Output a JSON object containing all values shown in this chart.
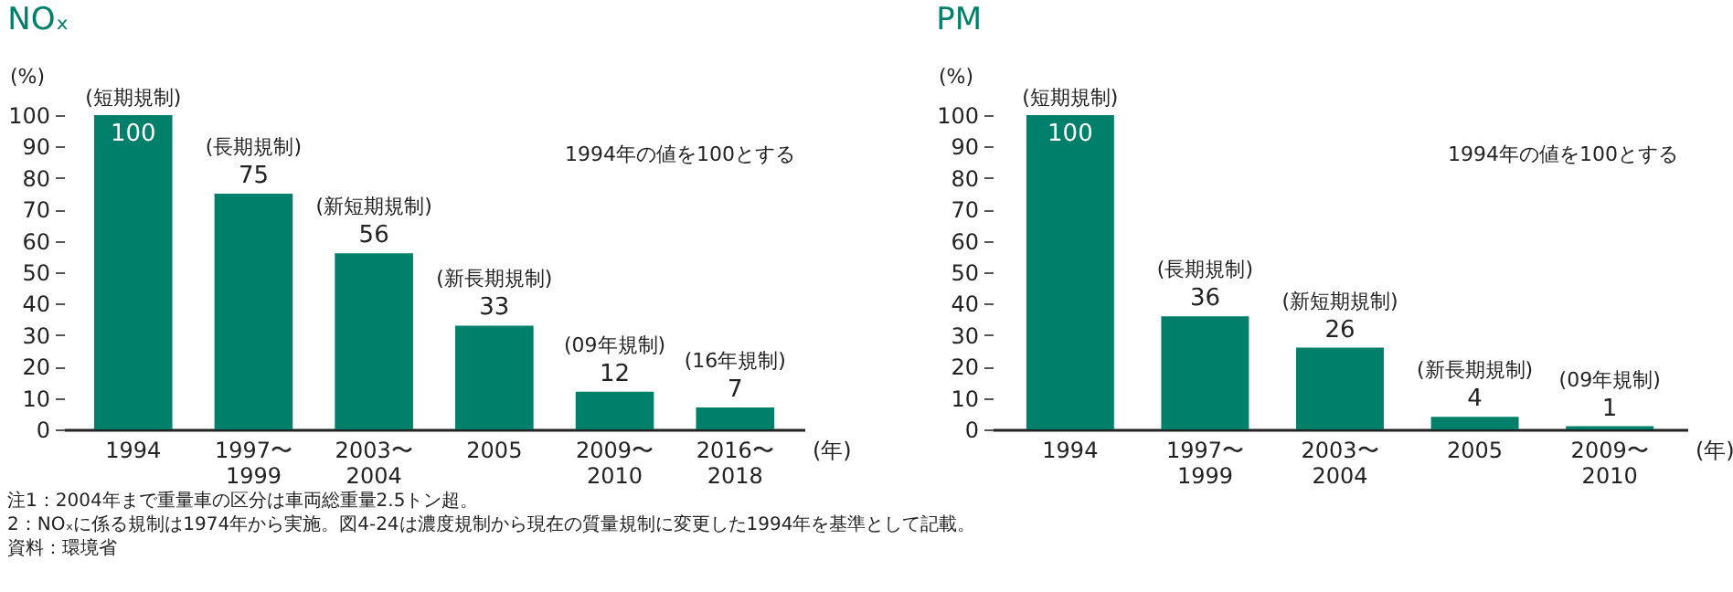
{
  "chart_data": [
    {
      "type": "bar",
      "title": "NOₓ",
      "ylabel": "(%)",
      "xlabel": "(年)",
      "categories": [
        "1994",
        "1997〜\n1999",
        "2003〜\n2004",
        "2005",
        "2009〜\n2010",
        "2016〜\n2018"
      ],
      "values": [
        100,
        75,
        56,
        33,
        12,
        7
      ],
      "color": "#00806a",
      "ylim": [
        0,
        100
      ],
      "yticks": [
        0,
        10,
        20,
        30,
        40,
        50,
        60,
        70,
        80,
        90,
        100
      ],
      "grid": false,
      "data_labels": true,
      "annotations": [
        "1994年の値を100とする",
        {
          "text": "(短期規制)",
          "x": "1994",
          "y": 100
        },
        {
          "text": "(長期規制)",
          "x": "1997〜\n1999",
          "y": 75
        },
        {
          "text": "(新短期規制)",
          "x": "2003〜\n2004",
          "y": 56
        },
        {
          "text": "(新長期規制)",
          "x": "2005",
          "y": 33
        },
        {
          "text": "(09年規制)",
          "x": "2009〜\n2010",
          "y": 12
        },
        {
          "text": "(16年規制)",
          "x": "2016〜\n2018",
          "y": 7
        },
        "注1：2004年まで重量車の区分は車両総重量2.5トン超。",
        "2：NOₓに係る規制は1974年から実施。図4-24は濃度規制から現在の質量規制に変更した1994年を基準として記載。",
        "資料：環境省"
      ]
    },
    {
      "type": "bar",
      "title": "PM",
      "ylabel": "(%)",
      "xlabel": "(年)",
      "categories": [
        "1994",
        "1997〜\n1999",
        "2003〜\n2004",
        "2005",
        "2009〜\n2010"
      ],
      "values": [
        100,
        36,
        26,
        4,
        1
      ],
      "color": "#00806a",
      "ylim": [
        0,
        100
      ],
      "yticks": [
        0,
        10,
        20,
        30,
        40,
        50,
        60,
        70,
        80,
        90,
        100
      ],
      "grid": false,
      "data_labels": true,
      "annotations": [
        "1994年の値を100とする",
        {
          "text": "(短期規制)",
          "x": "1994",
          "y": 100
        },
        {
          "text": "(長期規制)",
          "x": "1997〜\n1999",
          "y": 36
        },
        {
          "text": "(新短期規制)",
          "x": "2003〜\n2004",
          "y": 26
        },
        {
          "text": "(新長期規制)",
          "x": "2005",
          "y": 4
        },
        {
          "text": "(09年規制)",
          "x": "2009〜\n2010",
          "y": 1
        }
      ]
    }
  ]
}
